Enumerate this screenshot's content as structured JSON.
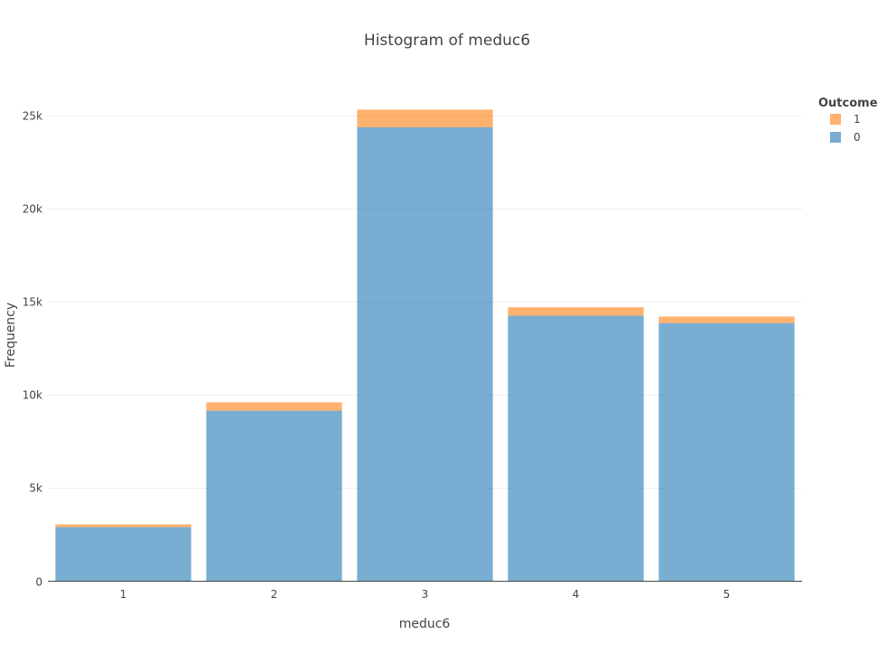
{
  "chart_data": {
    "type": "bar",
    "barmode": "stack",
    "title": "Histogram of meduc6",
    "xlabel": "meduc6",
    "ylabel": "Frequency",
    "categories": [
      "1",
      "2",
      "3",
      "4",
      "5"
    ],
    "series": [
      {
        "name": "0",
        "color": "#1f77b4",
        "values": [
          2900,
          9150,
          24350,
          14250,
          13850
        ]
      },
      {
        "name": "1",
        "color": "#ff7f0e",
        "values": [
          150,
          450,
          950,
          450,
          350
        ]
      }
    ],
    "ylim": [
      0,
      27500
    ],
    "yticks": [
      0,
      5000,
      10000,
      15000,
      20000,
      25000
    ],
    "ytick_labels": [
      "0",
      "5k",
      "10k",
      "15k",
      "20k",
      "25k"
    ],
    "grid": true,
    "legend": {
      "title": "Outcome",
      "placement": "top-right",
      "order": [
        "1",
        "0"
      ]
    }
  }
}
